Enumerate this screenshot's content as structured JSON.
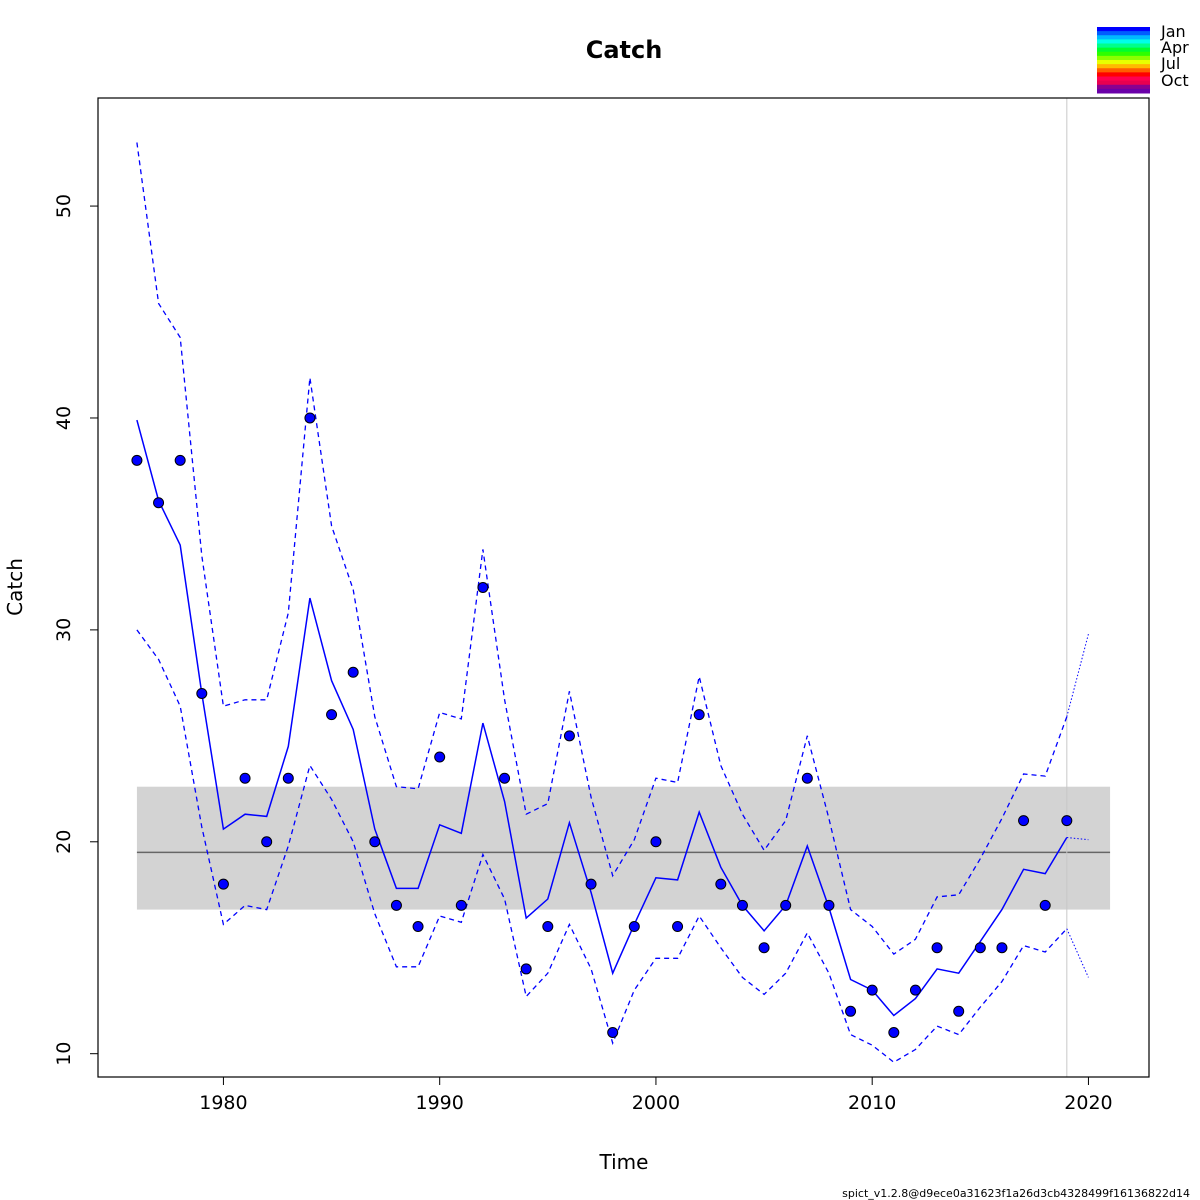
{
  "chart_data": {
    "type": "line",
    "title": "Catch",
    "xlabel": "Time",
    "ylabel": "Catch",
    "xlim": [
      1974.2,
      2022.8
    ],
    "ylim": [
      8.9,
      55.1
    ],
    "x_ticks": [
      1980,
      1990,
      2000,
      2010,
      2020
    ],
    "x_tick_labels": [
      "1980",
      "1990",
      "2000",
      "2010",
      "2020"
    ],
    "y_ticks": [
      10,
      20,
      30,
      40,
      50
    ],
    "y_tick_labels": [
      "10",
      "20",
      "30",
      "40",
      "50"
    ],
    "observed": {
      "x": [
        1976,
        1977,
        1978,
        1979,
        1980,
        1981,
        1982,
        1983,
        1984,
        1985,
        1986,
        1987,
        1988,
        1989,
        1990,
        1991,
        1992,
        1993,
        1994,
        1995,
        1996,
        1997,
        1998,
        1999,
        2000,
        2001,
        2002,
        2003,
        2004,
        2005,
        2006,
        2007,
        2008,
        2009,
        2010,
        2011,
        2012,
        2013,
        2014,
        2015,
        2016,
        2017,
        2018,
        2019
      ],
      "y": [
        38,
        36,
        38,
        27,
        18,
        23,
        20,
        23,
        40,
        26,
        28,
        20,
        17,
        16,
        24,
        17,
        32,
        23,
        14,
        16,
        25,
        18,
        11,
        16,
        20,
        16,
        26,
        18,
        17,
        15,
        17,
        23,
        17,
        12,
        13,
        11,
        13,
        15,
        12,
        15,
        15,
        21,
        17,
        21
      ],
      "color": "#0000ff"
    },
    "estimate": {
      "x": [
        1976,
        1977,
        1978,
        1979,
        1980,
        1981,
        1982,
        1983,
        1984,
        1985,
        1986,
        1987,
        1988,
        1989,
        1990,
        1991,
        1992,
        1993,
        1994,
        1995,
        1996,
        1997,
        1998,
        1999,
        2000,
        2001,
        2002,
        2003,
        2004,
        2005,
        2006,
        2007,
        2008,
        2009,
        2010,
        2011,
        2012,
        2013,
        2014,
        2015,
        2016,
        2017,
        2018,
        2019
      ],
      "y": [
        39.9,
        36.1,
        34.0,
        27.0,
        20.6,
        21.3,
        21.2,
        24.5,
        31.5,
        27.6,
        25.3,
        20.6,
        17.8,
        17.8,
        20.8,
        20.4,
        25.6,
        21.9,
        16.4,
        17.3,
        20.9,
        17.6,
        13.8,
        16.1,
        18.3,
        18.2,
        21.4,
        18.8,
        17.0,
        15.8,
        17.0,
        19.8,
        16.9,
        13.5,
        13.0,
        11.8,
        12.6,
        14.0,
        13.8,
        15.3,
        16.8,
        18.7,
        18.5,
        20.2
      ],
      "upper": [
        53.0,
        45.4,
        43.8,
        33.5,
        26.4,
        26.7,
        26.7,
        30.8,
        41.9,
        34.9,
        31.9,
        25.9,
        22.6,
        22.5,
        26.1,
        25.8,
        33.8,
        26.7,
        21.3,
        21.8,
        27.1,
        22.1,
        18.4,
        20.1,
        23.0,
        22.8,
        27.8,
        23.6,
        21.3,
        19.6,
        21.0,
        25.0,
        21.1,
        16.8,
        16.0,
        14.7,
        15.4,
        17.4,
        17.5,
        19.2,
        21.1,
        23.2,
        23.1,
        25.9
      ],
      "lower": [
        30.0,
        28.6,
        26.4,
        20.7,
        16.1,
        17.0,
        16.8,
        19.8,
        23.6,
        22.0,
        20.0,
        16.6,
        14.1,
        14.1,
        16.5,
        16.2,
        19.4,
        17.3,
        12.7,
        13.8,
        16.1,
        14.0,
        10.5,
        13.0,
        14.5,
        14.5,
        16.5,
        15.0,
        13.6,
        12.8,
        13.8,
        15.7,
        13.8,
        10.9,
        10.4,
        9.6,
        10.2,
        11.3,
        10.9,
        12.2,
        13.4,
        15.1,
        14.8,
        15.9
      ],
      "color": "#0000ff"
    },
    "forecast": {
      "x": [
        2019,
        2020
      ],
      "y": [
        20.2,
        20.1
      ],
      "upper": [
        25.9,
        29.8
      ],
      "lower": [
        15.9,
        13.6
      ]
    },
    "mean_line": {
      "value": 19.5,
      "color": "#666666"
    },
    "band": {
      "lower": 16.8,
      "upper": 22.6,
      "x_from": 1976,
      "x_to": 2021,
      "color": "#d3d3d3"
    },
    "vertical_marker": {
      "x": 2019,
      "color": "#c8c8c8"
    },
    "legend": {
      "position": "top-right",
      "labels": [
        "Jan",
        "Apr",
        "Jul",
        "Oct"
      ],
      "colors": [
        "#0000ff",
        "#005dff",
        "#00b9ff",
        "#00ffe8",
        "#00ff8b",
        "#00ff2e",
        "#2eff00",
        "#8bff00",
        "#e8ff00",
        "#ffb900",
        "#ff5d00",
        "#ff0000",
        "#ff0050",
        "#e80050",
        "#8b0090",
        "#6a00a8"
      ]
    },
    "grid": false
  },
  "footnote": "spict_v1.2.8@d9ece0a31623f1a26d3cb4328499f16136822d14"
}
